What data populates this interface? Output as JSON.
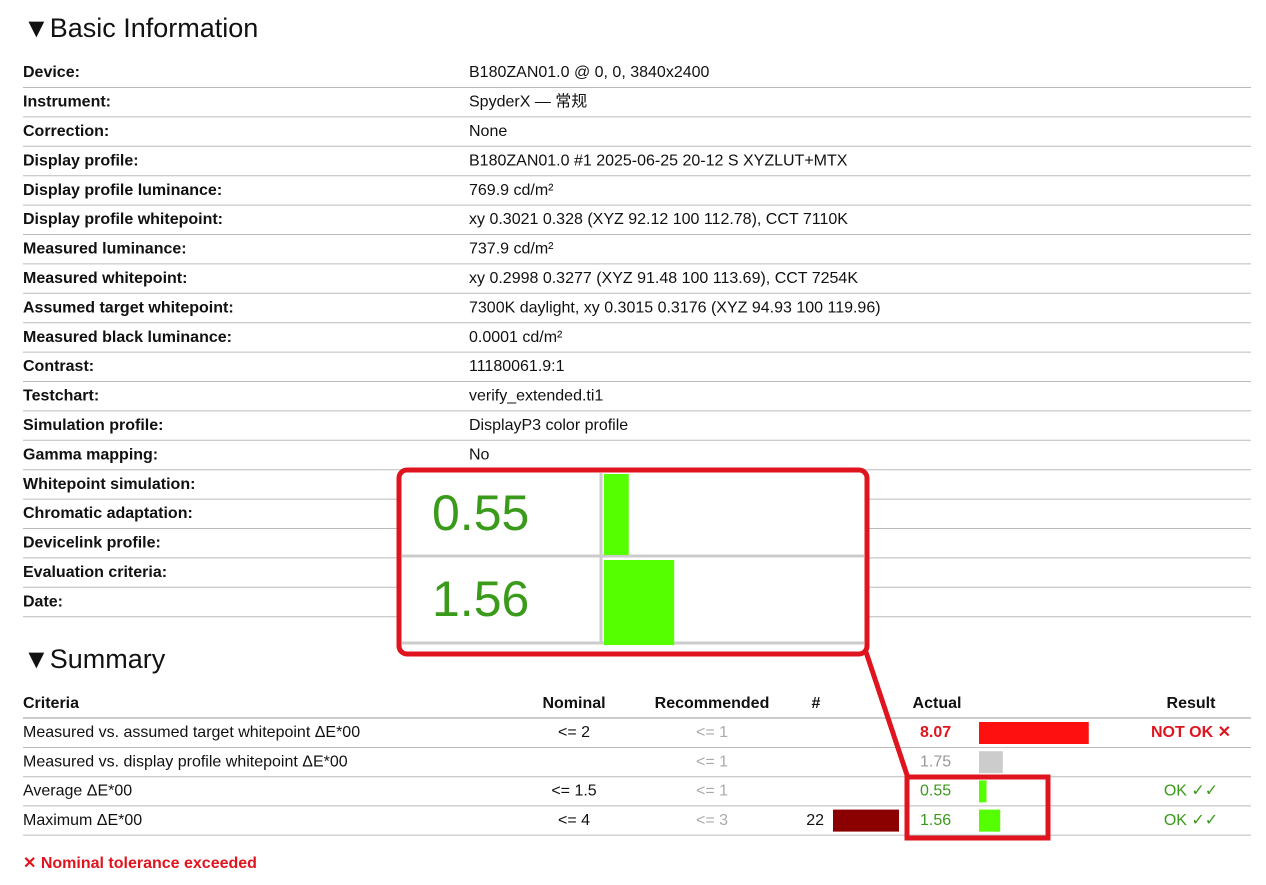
{
  "basic": {
    "heading": "▼Basic Information",
    "rows": [
      [
        "Device:",
        "B180ZAN01.0 @ 0, 0, 3840x2400"
      ],
      [
        "Instrument:",
        "SpyderX — 常规"
      ],
      [
        "Correction:",
        "None"
      ],
      [
        "Display profile:",
        "B180ZAN01.0 #1 2025-06-25 20-12 S XYZLUT+MTX"
      ],
      [
        "Display profile luminance:",
        "769.9 cd/m²"
      ],
      [
        "Display profile whitepoint:",
        "xy 0.3021 0.328 (XYZ 92.12 100 112.78), CCT 7110K"
      ],
      [
        "Measured luminance:",
        "737.9 cd/m²"
      ],
      [
        "Measured whitepoint:",
        "xy 0.2998 0.3277 (XYZ 91.48 100 113.69), CCT 7254K"
      ],
      [
        "Assumed target whitepoint:",
        "7300K daylight, xy 0.3015 0.3176 (XYZ 94.93 100 119.96)"
      ],
      [
        "Measured black luminance:",
        "0.0001 cd/m²"
      ],
      [
        "Contrast:",
        "11180061.9:1"
      ],
      [
        "Testchart:",
        "verify_extended.ti1"
      ],
      [
        "Simulation profile:",
        "DisplayP3 color profile"
      ],
      [
        "Gamma mapping:",
        "No"
      ],
      [
        "Whitepoint simulation:"
      ],
      [
        "Chromatic adaptation:"
      ],
      [
        "Devicelink profile:"
      ],
      [
        "Evaluation criteria:"
      ],
      [
        "Date:"
      ]
    ]
  },
  "summary": {
    "heading": "▼Summary",
    "columns": [
      "Criteria",
      "Nominal",
      "Recommended",
      "#",
      "Actual",
      "Result"
    ],
    "rows": [
      {
        "criteria": "Measured vs. assumed target whitepoint ΔE*00",
        "nominal": "<= 2",
        "recommended": "<= 1",
        "actual": 8.07,
        "actual_color": "#e0141e",
        "bar_color": "#ff1010",
        "result": "NOT OK ✕",
        "result_color": "#e0141e"
      },
      {
        "criteria": "Measured vs. display profile whitepoint ΔE*00",
        "recommended": "<= 1",
        "actual": 1.75,
        "actual_color": "#999999",
        "bar_color": "#cccccc"
      },
      {
        "criteria": "Average ΔE*00",
        "nominal": "<= 1.5",
        "recommended": "<= 1",
        "actual": 0.55,
        "actual_color": "#3a9a1a",
        "bar_color": "#55ff00",
        "result": "OK ✓✓",
        "result_color": "#3a9a1a"
      },
      {
        "criteria": "Maximum ΔE*00",
        "nominal": "<= 4",
        "recommended": "<= 3",
        "count": 22,
        "count_color": "#8b0000",
        "actual": 1.56,
        "actual_color": "#3a9a1a",
        "bar_color": "#55ff00",
        "result": "OK ✓✓",
        "result_color": "#3a9a1a"
      }
    ],
    "footer": "✕ Nominal tolerance exceeded"
  }
}
